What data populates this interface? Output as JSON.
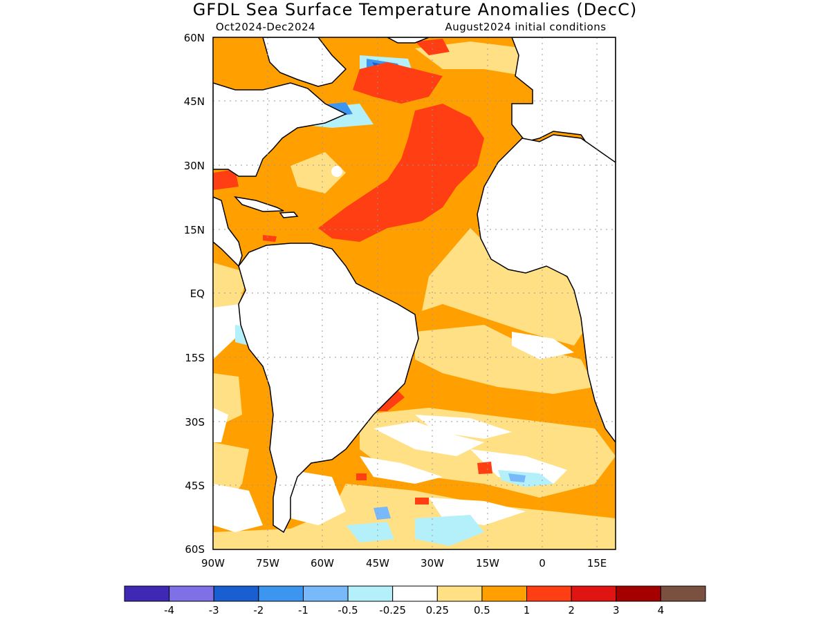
{
  "title": "GFDL Sea Surface Temperature Anomalies (DecC)",
  "subtitle_left": "Oct2024-Dec2024",
  "subtitle_right": "August2024 initial conditions",
  "lat_labels": [
    "60N",
    "45N",
    "30N",
    "15N",
    "EQ",
    "15S",
    "30S",
    "45S",
    "60S"
  ],
  "lon_labels": [
    "90W",
    "75W",
    "60W",
    "45W",
    "30W",
    "15W",
    "0",
    "15E"
  ],
  "colorbar": {
    "colors": [
      "#3f28b4",
      "#8070e8",
      "#1a5fd2",
      "#3c96f0",
      "#78b9fa",
      "#b4f0fa",
      "#ffffff",
      "#ffe084",
      "#ffa000",
      "#ff3e14",
      "#e11414",
      "#a50000",
      "#7a5040"
    ],
    "labels": [
      "-4",
      "-3",
      "-2",
      "-1",
      "-0.5",
      "-0.25",
      "0.25",
      "0.5",
      "1",
      "2",
      "3",
      "4"
    ]
  },
  "map": {
    "lat_range": [
      -60,
      60
    ],
    "lon_range": [
      -90,
      20
    ],
    "land_color": "#ffffff",
    "grid": true
  }
}
